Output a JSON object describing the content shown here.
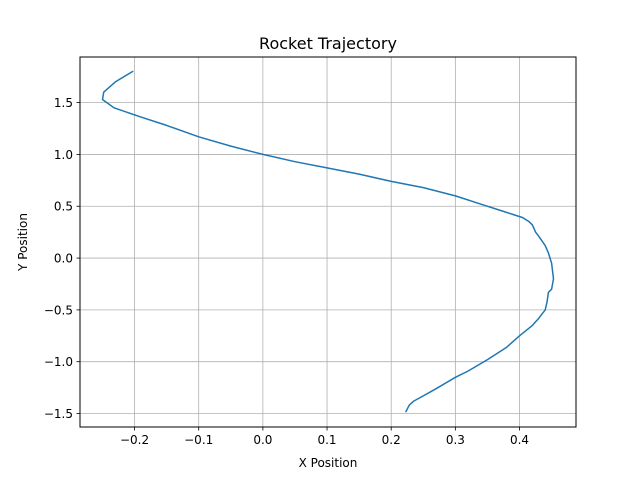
{
  "chart_data": {
    "type": "line",
    "title": "Rocket Trajectory",
    "xlabel": "X Position",
    "ylabel": "Y Position",
    "xlim": [
      -0.285,
      0.488
    ],
    "ylim": [
      -1.63,
      1.94
    ],
    "xticks": [
      -0.2,
      -0.1,
      0.0,
      0.1,
      0.2,
      0.3,
      0.4
    ],
    "xtick_labels": [
      "−0.2",
      "−0.1",
      "0.0",
      "0.1",
      "0.2",
      "0.3",
      "0.4"
    ],
    "yticks": [
      -1.5,
      -1.0,
      -0.5,
      0.0,
      0.5,
      1.0,
      1.5
    ],
    "ytick_labels": [
      "−1.5",
      "−1.0",
      "−0.5",
      "0.0",
      "0.5",
      "1.0",
      "1.5"
    ],
    "grid": true,
    "line_color": "#1f77b4",
    "series": [
      {
        "x": [
          -0.203,
          -0.23,
          -0.248,
          -0.25,
          -0.232,
          -0.19,
          -0.15,
          -0.1,
          -0.05,
          0.0,
          0.05,
          0.1,
          0.15,
          0.2,
          0.25,
          0.3,
          0.34,
          0.37,
          0.39,
          0.405,
          0.415,
          0.42,
          0.425,
          0.43,
          0.44,
          0.445,
          0.45,
          0.453,
          0.45,
          0.445,
          0.443,
          0.44,
          0.43,
          0.42,
          0.4,
          0.38,
          0.35,
          0.32,
          0.3,
          0.27,
          0.25,
          0.235,
          0.228,
          0.223
        ],
        "y": [
          1.8,
          1.7,
          1.6,
          1.53,
          1.45,
          1.36,
          1.28,
          1.17,
          1.08,
          1.0,
          0.93,
          0.87,
          0.81,
          0.74,
          0.68,
          0.6,
          0.52,
          0.46,
          0.42,
          0.39,
          0.35,
          0.32,
          0.25,
          0.21,
          0.12,
          0.05,
          -0.05,
          -0.2,
          -0.3,
          -0.33,
          -0.42,
          -0.5,
          -0.58,
          -0.65,
          -0.75,
          -0.86,
          -0.98,
          -1.09,
          -1.15,
          -1.26,
          -1.33,
          -1.38,
          -1.42,
          -1.48
        ]
      }
    ]
  }
}
